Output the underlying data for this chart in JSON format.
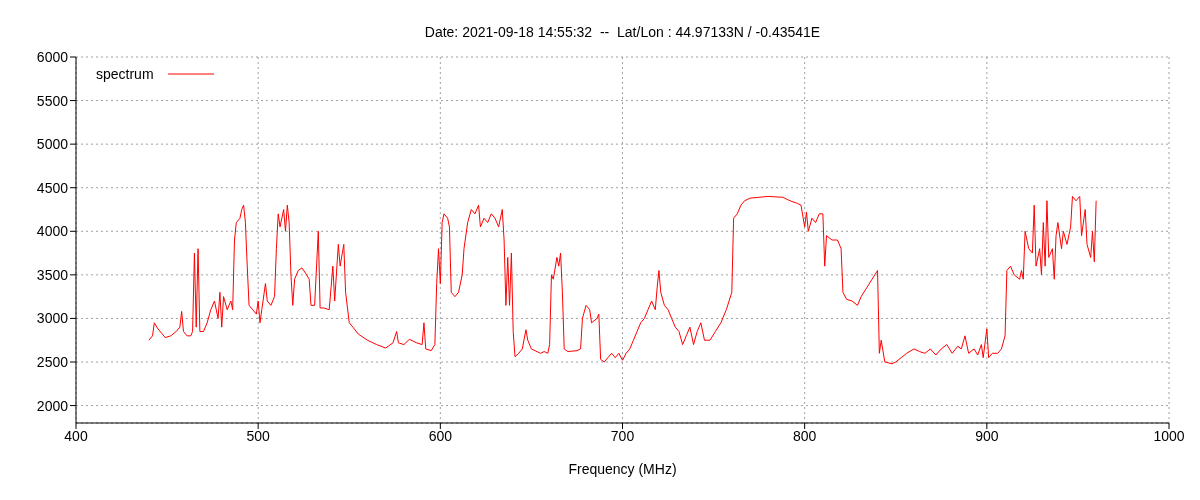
{
  "chart_data": {
    "type": "line",
    "title": "Date: 2021-09-18 14:55:32  --  Lat/Lon : 44.97133N / -0.43541E",
    "xlabel": "Frequency (MHz)",
    "x": [
      440,
      442,
      443,
      445,
      447,
      449,
      452,
      455,
      457,
      458,
      459,
      461,
      463,
      464,
      465,
      466,
      467,
      468,
      470,
      472,
      474,
      476,
      478,
      479,
      480,
      481,
      483,
      485,
      486,
      487,
      488,
      490,
      491,
      492,
      493,
      494,
      495,
      497,
      499,
      500,
      501,
      502,
      504,
      505,
      507,
      509,
      510,
      511,
      512,
      514,
      515,
      516,
      517,
      518,
      519,
      520,
      522,
      524,
      526,
      528,
      529,
      531,
      533,
      534,
      536,
      539,
      541,
      542,
      544,
      545,
      547,
      548,
      550,
      552,
      555,
      560,
      565,
      570,
      574,
      576,
      577,
      580,
      583,
      587,
      590,
      591,
      592,
      595,
      597,
      598,
      599,
      600,
      601,
      602,
      604,
      605,
      606,
      608,
      610,
      612,
      613,
      615,
      617,
      619,
      621,
      622,
      624,
      626,
      628,
      630,
      632,
      634,
      635,
      636,
      637,
      638,
      639,
      640,
      641,
      643,
      645,
      647,
      648,
      650,
      655,
      657,
      659,
      660,
      661,
      662,
      664,
      665,
      666,
      667,
      668,
      670,
      675,
      677,
      678,
      680,
      682,
      683,
      686,
      687,
      688,
      690,
      692,
      694,
      696,
      698,
      700,
      702,
      704,
      706,
      708,
      710,
      712,
      714,
      716,
      718,
      719,
      720,
      721,
      723,
      725,
      727,
      729,
      731,
      733,
      735,
      737,
      739,
      741,
      743,
      745,
      748,
      751,
      754,
      757,
      760,
      761,
      763,
      765,
      767,
      770,
      780,
      788,
      792,
      796,
      798,
      800,
      801,
      802,
      804,
      806,
      808,
      810,
      811,
      812,
      815,
      818,
      820,
      821,
      823,
      826,
      829,
      831,
      834,
      837,
      840,
      841,
      842,
      844,
      848,
      850,
      853,
      856,
      860,
      863,
      866,
      869,
      872,
      875,
      878,
      881,
      884,
      886,
      888,
      890,
      893,
      895,
      897,
      898,
      900,
      901,
      903,
      906,
      908,
      910,
      911,
      913,
      915,
      918,
      919,
      920,
      921,
      923,
      925,
      926,
      927,
      929,
      930,
      931,
      932,
      933,
      934,
      936,
      937,
      938,
      939,
      941,
      942,
      944,
      946,
      947,
      949,
      951,
      952,
      954,
      955,
      957,
      958,
      959,
      960
    ],
    "series": [
      {
        "name": "spectrum",
        "color": "#ff0000",
        "values": [
          2750,
          2800,
          2950,
          2880,
          2830,
          2780,
          2800,
          2850,
          2900,
          3080,
          2850,
          2800,
          2800,
          2850,
          3750,
          2900,
          3800,
          2850,
          2850,
          2950,
          3100,
          3200,
          3000,
          3300,
          2900,
          3250,
          3100,
          3200,
          3100,
          3900,
          4100,
          4150,
          4250,
          4300,
          4100,
          3600,
          3150,
          3100,
          3050,
          3200,
          2950,
          3100,
          3400,
          3200,
          3150,
          3250,
          3800,
          4200,
          4050,
          4250,
          4000,
          4300,
          4100,
          3500,
          3150,
          3450,
          3550,
          3580,
          3520,
          3450,
          3150,
          3150,
          4000,
          3120,
          3120,
          3100,
          3600,
          3200,
          3850,
          3600,
          3850,
          3300,
          2950,
          2900,
          2820,
          2750,
          2700,
          2660,
          2720,
          2850,
          2720,
          2700,
          2760,
          2720,
          2700,
          2950,
          2650,
          2630,
          2700,
          3400,
          3800,
          3400,
          4100,
          4200,
          4150,
          4050,
          3300,
          3250,
          3300,
          3500,
          3800,
          4100,
          4250,
          4200,
          4300,
          4050,
          4150,
          4100,
          4200,
          4150,
          4050,
          4250,
          3900,
          3150,
          3700,
          3150,
          3750,
          2850,
          2560,
          2600,
          2650,
          2870,
          2750,
          2650,
          2600,
          2620,
          2600,
          2700,
          3500,
          3450,
          3700,
          3600,
          3750,
          3300,
          2650,
          2620,
          2630,
          2650,
          3000,
          3150,
          3100,
          2950,
          3000,
          3050,
          2530,
          2500,
          2550,
          2600,
          2550,
          2600,
          2520,
          2600,
          2650,
          2750,
          2850,
          2950,
          3000,
          3100,
          3200,
          3100,
          3350,
          3550,
          3300,
          3150,
          3100,
          3000,
          2900,
          2850,
          2700,
          2800,
          2900,
          2700,
          2850,
          2950,
          2750,
          2750,
          2850,
          2950,
          3100,
          3300,
          4150,
          4200,
          4300,
          4350,
          4380,
          4400,
          4390,
          4350,
          4320,
          4300,
          4050,
          4220,
          4000,
          4150,
          4100,
          4200,
          4200,
          3600,
          3950,
          3900,
          3900,
          3800,
          3300,
          3220,
          3200,
          3150,
          3250,
          3350,
          3450,
          3550,
          2600,
          2750,
          2500,
          2480,
          2500,
          2550,
          2600,
          2650,
          2620,
          2600,
          2650,
          2580,
          2650,
          2700,
          2600,
          2680,
          2650,
          2800,
          2600,
          2650,
          2580,
          2700,
          2550,
          2880,
          2550,
          2600,
          2600,
          2650,
          2800,
          3550,
          3600,
          3500,
          3450,
          3550,
          3450,
          4000,
          3800,
          3750,
          4300,
          3600,
          3800,
          3500,
          4100,
          3600,
          4350,
          3700,
          3800,
          3450,
          3950,
          4100,
          3800,
          4000,
          3850,
          4050,
          4400,
          4350,
          4400,
          3950,
          4250,
          3850,
          3700,
          4000,
          3650,
          4350
        ]
      }
    ],
    "xlim": [
      400,
      1000
    ],
    "xticks": [
      400,
      500,
      600,
      700,
      800,
      900,
      1000
    ],
    "ylim": [
      1800,
      6000
    ],
    "yticks": [
      2000,
      2500,
      3000,
      3500,
      4000,
      4500,
      5000,
      5500,
      6000
    ],
    "grid": true,
    "legend": "top left",
    "marker": "none",
    "line_style": "solid"
  }
}
